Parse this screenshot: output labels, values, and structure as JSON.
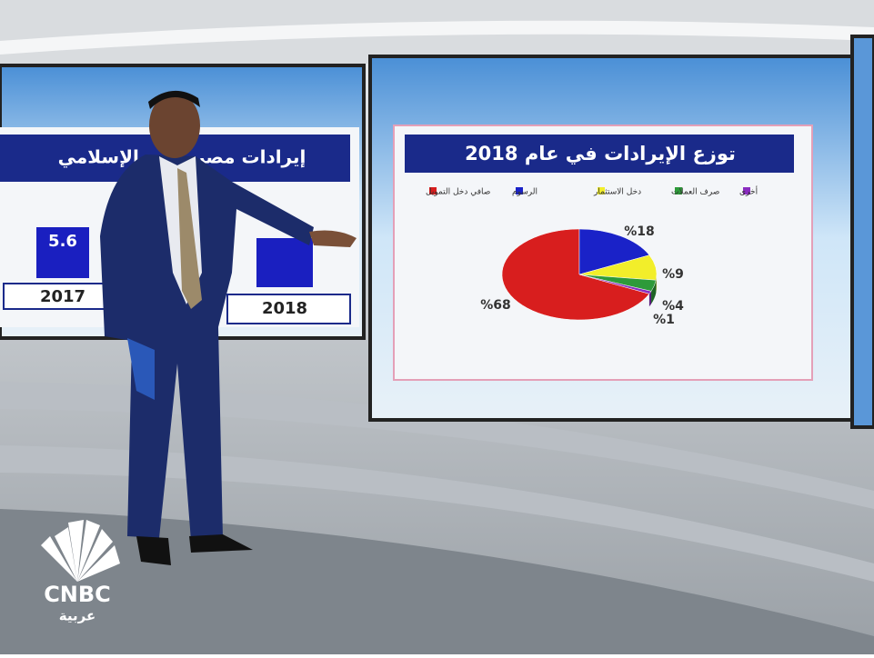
{
  "left_panel": {
    "title": "إيرادات مصر ظبي الإسلامي",
    "value_label": "5.6",
    "years": [
      "2017",
      "2018"
    ]
  },
  "chart_data": {
    "type": "pie",
    "title": "توزع الإيرادات في عام 2018",
    "series": [
      {
        "name": "صافي دخل التمويل",
        "color": "#d81e1e"
      },
      {
        "name": "الرسوم",
        "color": "#1a22c8"
      },
      {
        "name": "دخل الاستثمار",
        "color": "#f2ee2a"
      },
      {
        "name": "صرف العملات",
        "color": "#2e9a3a"
      },
      {
        "name": "أخرى",
        "color": "#8a2cc0"
      }
    ],
    "values": [
      68,
      18,
      9,
      4,
      1
    ],
    "value_labels": [
      "%68",
      "%18",
      "%9",
      "%4",
      "%1"
    ]
  },
  "logo": {
    "name": "CNBC",
    "sub": "عربية"
  }
}
